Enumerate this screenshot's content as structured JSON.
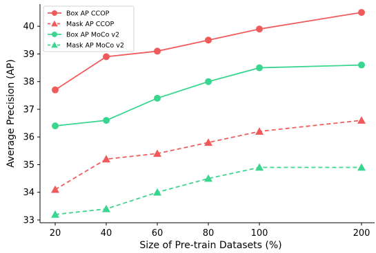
{
  "chart_data": {
    "type": "line",
    "title": "",
    "xlabel": "Size of Pre-train Datasets (%)",
    "ylabel": "Average Precision (AP)",
    "x": [
      20,
      40,
      60,
      80,
      100,
      200
    ],
    "x_ticks": [
      "20",
      "40",
      "60",
      "80",
      "100",
      "200"
    ],
    "y_ticks": [
      33,
      34,
      35,
      36,
      37,
      38,
      39,
      40
    ],
    "ylim": [
      32.9,
      40.8
    ],
    "grid": false,
    "legend_position": "top-left",
    "series": [
      {
        "name": "Box AP CCOP",
        "values": [
          37.7,
          38.9,
          39.1,
          39.5,
          39.9,
          40.5
        ],
        "color": "#f05a5a",
        "marker": "circle",
        "dash": "solid"
      },
      {
        "name": "Mask AP CCOP",
        "values": [
          34.1,
          35.2,
          35.4,
          35.8,
          36.2,
          36.6
        ],
        "color": "#f05a5a",
        "marker": "triangle",
        "dash": "dashed"
      },
      {
        "name": "Box AP MoCo v2",
        "values": [
          36.4,
          36.6,
          37.4,
          38.0,
          38.5,
          38.6
        ],
        "color": "#3ad68f",
        "marker": "circle",
        "dash": "solid"
      },
      {
        "name": "Mask AP MoCo v2",
        "values": [
          33.2,
          33.4,
          34.0,
          34.5,
          34.9,
          34.9
        ],
        "color": "#3ad68f",
        "marker": "triangle",
        "dash": "dashed"
      }
    ]
  }
}
